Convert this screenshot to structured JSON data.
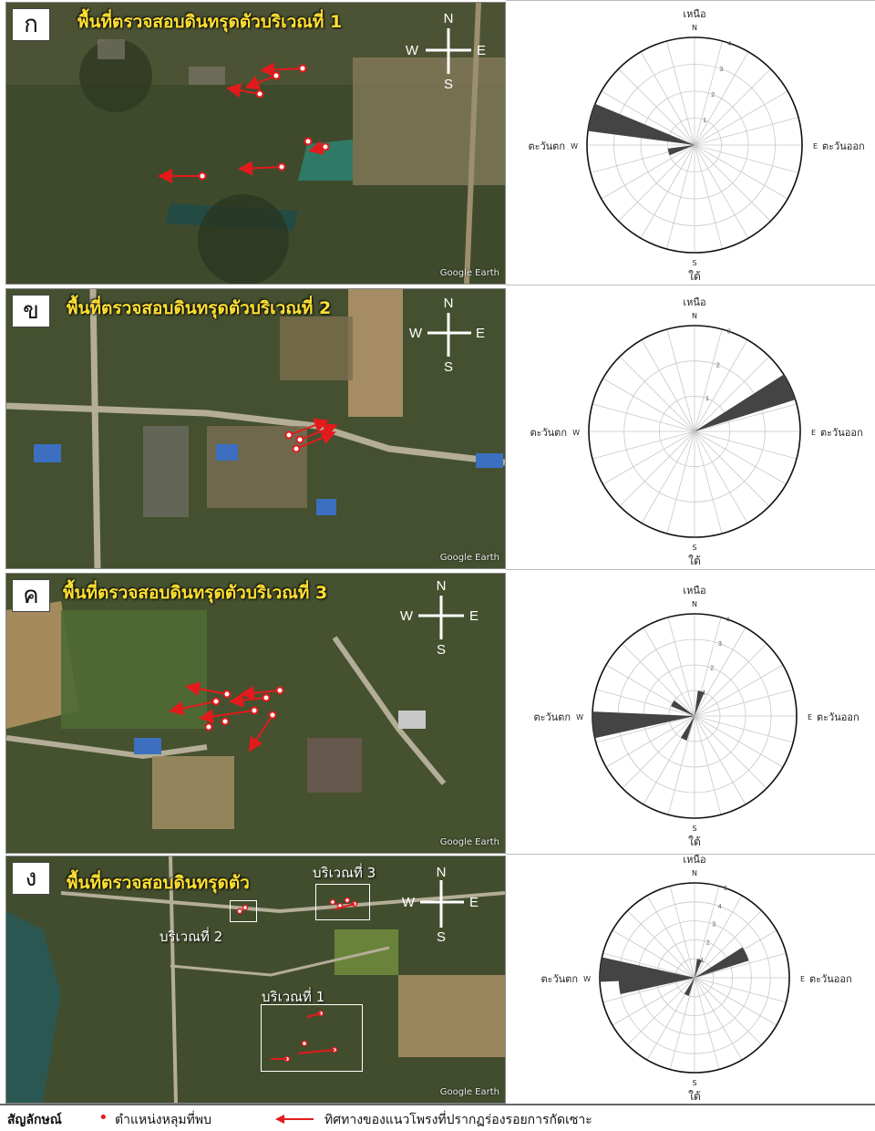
{
  "panels": [
    {
      "letter": "ก",
      "title": "พื้นที่ตรวจสอบดินทรุดตัวบริเวณที่ 1",
      "credit": "Google Earth",
      "compass": {
        "n": "N",
        "s": "S",
        "e": "E",
        "w": "W"
      },
      "rose": {
        "north": "เหนือ",
        "north_abbr": "N",
        "south": "ใต้",
        "south_abbr": "S",
        "west": "ตะวันตก",
        "west_abbr": "W",
        "east": "ตะวันออก",
        "east_abbr": "E",
        "rings": [
          1,
          2,
          3,
          4
        ],
        "petals": [
          {
            "azimuth": 285,
            "count": 4
          },
          {
            "azimuth": 255,
            "count": 1
          }
        ]
      }
    },
    {
      "letter": "ข",
      "title": "พื้นที่ตรวจสอบดินทรุดตัวบริเวณที่ 2",
      "credit": "Google Earth",
      "compass": {
        "n": "N",
        "s": "S",
        "e": "E",
        "w": "W"
      },
      "rose": {
        "north": "เหนือ",
        "north_abbr": "N",
        "south": "ใต้",
        "south_abbr": "S",
        "west": "ตะวันตก",
        "west_abbr": "W",
        "east": "ตะวันออก",
        "east_abbr": "E",
        "rings": [
          1,
          2,
          3
        ],
        "petals": [
          {
            "azimuth": 65,
            "count": 3
          }
        ]
      }
    },
    {
      "letter": "ค",
      "title": "พื้นที่ตรวจสอบดินทรุดตัวบริเวณที่ 3",
      "credit": "Google Earth",
      "compass": {
        "n": "N",
        "s": "S",
        "e": "E",
        "w": "W"
      },
      "rose": {
        "north": "เหนือ",
        "north_abbr": "N",
        "south": "ใต้",
        "south_abbr": "S",
        "west": "ตะวันตก",
        "west_abbr": "W",
        "east": "ตะวันออก",
        "east_abbr": "E",
        "rings": [
          1,
          2,
          3,
          4
        ],
        "petals": [
          {
            "azimuth": 265,
            "count": 4
          },
          {
            "azimuth": 15,
            "count": 1
          },
          {
            "azimuth": 205,
            "count": 1
          },
          {
            "azimuth": 300,
            "count": 1
          }
        ]
      }
    },
    {
      "letter": "ง",
      "title": "พื้นที่ตรวจสอบดินทรุดตัว",
      "credit": "Google Earth",
      "compass": {
        "n": "N",
        "s": "S",
        "e": "E",
        "w": "W"
      },
      "area_labels": [
        "บริเวณที่ 3",
        "บริเวณที่ 2",
        "บริเวณที่ 1"
      ],
      "rose": {
        "north": "เหนือ",
        "north_abbr": "N",
        "south": "ใต้",
        "south_abbr": "S",
        "west": "ตะวันตก",
        "west_abbr": "W",
        "east": "ตะวันออก",
        "east_abbr": "E",
        "rings": [
          1,
          2,
          3,
          4,
          5
        ],
        "petals": [
          {
            "azimuth": 275,
            "count": 5
          },
          {
            "azimuth": 265,
            "count": 4
          },
          {
            "azimuth": 65,
            "count": 3
          },
          {
            "azimuth": 15,
            "count": 1
          },
          {
            "azimuth": 205,
            "count": 1
          }
        ]
      }
    }
  ],
  "legend": {
    "heading": "สัญลักษณ์",
    "hole_label": "ตำแหน่งหลุมที่พบ",
    "arrow_label": "ทิศทางของแนวโพรงที่ปรากฏร่องรอยการกัดเซาะ",
    "hole_color": "#e31a1c",
    "arrow_color": "#e31a1c"
  },
  "colors": {
    "title": "#ffe033",
    "petal": "#444444",
    "marker": "#e31a1c"
  }
}
